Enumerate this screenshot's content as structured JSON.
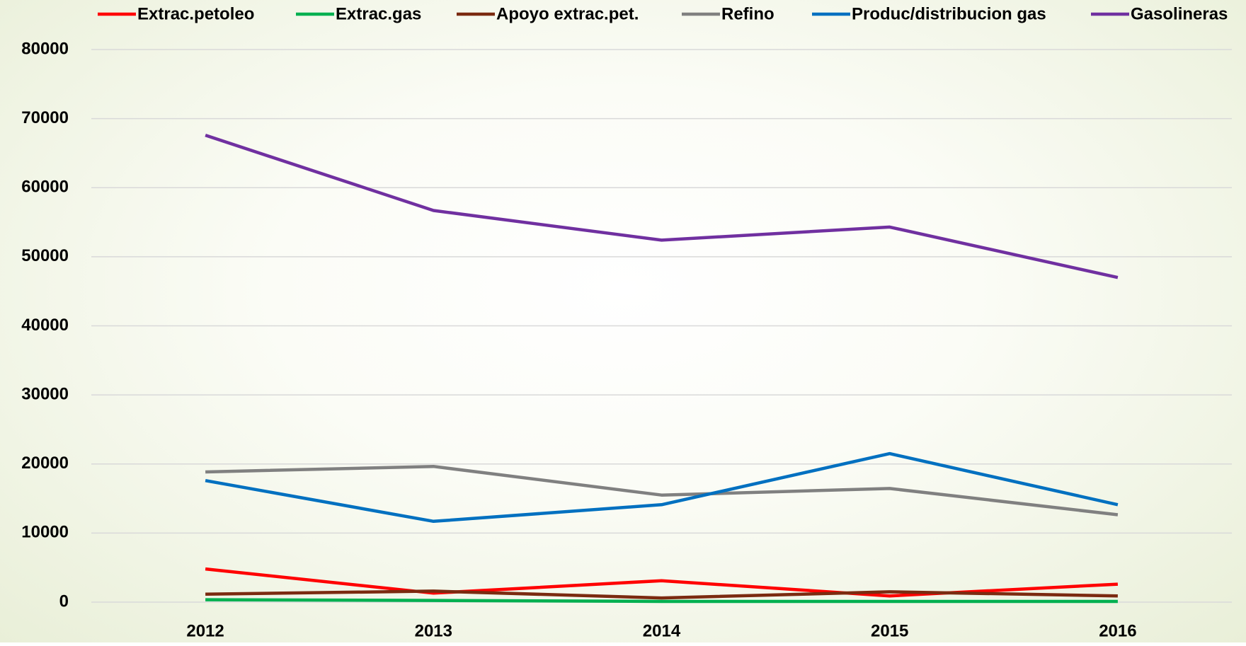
{
  "chart_data": {
    "type": "line",
    "categories": [
      "2012",
      "2013",
      "2014",
      "2015",
      "2016"
    ],
    "series": [
      {
        "name": "Extrac.petoleo",
        "color": "#ff0000",
        "values": [
          4800,
          1300,
          3100,
          900,
          2600
        ]
      },
      {
        "name": "Extrac.gas",
        "color": "#00b050",
        "values": [
          350,
          250,
          100,
          100,
          100
        ]
      },
      {
        "name": "Apoyo extrac.pet.",
        "color": "#7b2a10",
        "values": [
          1150,
          1600,
          600,
          1500,
          900
        ]
      },
      {
        "name": "Refino",
        "color": "#808080",
        "values": [
          18850,
          19650,
          15500,
          16450,
          12650
        ]
      },
      {
        "name": "Produc/distribucion gas",
        "color": "#0070c0",
        "values": [
          17600,
          11700,
          14100,
          21500,
          14100
        ]
      },
      {
        "name": "Gasolineras",
        "color": "#7030a0",
        "values": [
          67600,
          56700,
          52400,
          54300,
          47000
        ]
      }
    ],
    "ylim": [
      0,
      80000
    ],
    "yticks": [
      0,
      10000,
      20000,
      30000,
      40000,
      50000,
      60000,
      70000,
      80000
    ],
    "grid": true,
    "legend": "top"
  }
}
